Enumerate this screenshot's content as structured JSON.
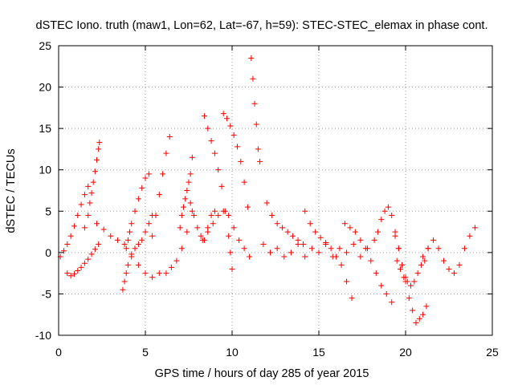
{
  "chart_data": {
    "type": "scatter",
    "title": "dSTEC Iono. truth (maw1, Lon=62, Lat=-67, h=59): STEC-STEC_elemax in phase cont.",
    "xlabel": "GPS time / hours of day 285 of year 2015",
    "ylabel": "dSTEC  / TECUs",
    "xlim": [
      0,
      25
    ],
    "ylim": [
      -10,
      25
    ],
    "xticks": [
      0,
      5,
      10,
      15,
      20,
      25
    ],
    "yticks": [
      -10,
      -5,
      0,
      5,
      10,
      15,
      20,
      25
    ],
    "x_tick_labels": [
      "0",
      "5",
      "10",
      "15",
      "20",
      "25"
    ],
    "y_tick_labels": [
      "-10",
      "-5",
      "0",
      "5",
      "10",
      "15",
      "20",
      "25"
    ],
    "grid": true,
    "marker": "plus",
    "color": "#ff0000",
    "series": [
      {
        "x": [
          0.1,
          0.3,
          0.5,
          0.7,
          0.9,
          1.1,
          1.3,
          1.5,
          1.7
        ],
        "y": [
          -0.5,
          0.2,
          1.0,
          2.0,
          3.2,
          4.5,
          5.8,
          7.0,
          8.0
        ]
      },
      {
        "x": [
          1.5,
          1.7,
          1.8,
          1.9,
          2.0,
          2.1,
          2.2,
          2.3,
          2.35
        ],
        "y": [
          3.0,
          4.5,
          6.0,
          7.2,
          8.5,
          9.8,
          11.2,
          12.5,
          13.3
        ]
      },
      {
        "x": [
          0.5,
          0.7,
          0.9,
          1.1,
          1.3,
          1.5,
          1.7,
          1.9,
          2.1,
          2.3
        ],
        "y": [
          -2.5,
          -2.8,
          -2.6,
          -2.2,
          -1.8,
          -1.3,
          -0.8,
          -0.2,
          0.4,
          1.0
        ]
      },
      {
        "x": [
          3.9,
          4.0,
          4.1,
          4.2,
          4.4,
          4.6,
          4.8,
          5.0,
          5.2
        ],
        "y": [
          0.5,
          1.5,
          2.5,
          3.5,
          5.0,
          6.5,
          7.8,
          9.0,
          9.5
        ]
      },
      {
        "x": [
          3.7,
          3.8,
          3.9,
          4.0,
          4.2,
          4.4,
          4.6,
          4.8,
          5.0,
          5.2,
          5.4
        ],
        "y": [
          -4.5,
          -3.5,
          -2.5,
          -1.5,
          -0.2,
          0.5,
          1.0,
          1.5,
          2.5,
          3.5,
          4.5
        ]
      },
      {
        "x": [
          5.4,
          5.6,
          5.8,
          6.0,
          6.2,
          6.4
        ],
        "y": [
          2.0,
          4.5,
          7.0,
          9.5,
          12.0,
          14.0
        ]
      },
      {
        "x": [
          2.2,
          2.6,
          3.0,
          3.4,
          3.8,
          4.2,
          4.6,
          5.0,
          5.4,
          5.8
        ],
        "y": [
          3.5,
          2.8,
          2.0,
          1.5,
          1.0,
          -0.5,
          -1.5,
          -2.5,
          -3.0,
          -2.5
        ]
      },
      {
        "x": [
          6.2,
          6.5,
          6.8,
          7.1,
          7.4,
          7.7
        ],
        "y": [
          -2.5,
          -1.8,
          -1.0,
          0.5,
          2.5,
          5.0
        ]
      },
      {
        "x": [
          7.0,
          7.1,
          7.2,
          7.3,
          7.4,
          7.5,
          7.6,
          7.7
        ],
        "y": [
          3.0,
          4.5,
          5.5,
          6.5,
          7.5,
          8.5,
          9.5,
          11.5
        ]
      },
      {
        "x": [
          7.6,
          7.8,
          8.0,
          8.2,
          8.4,
          8.6,
          8.8,
          9.0
        ],
        "y": [
          6.0,
          4.5,
          3.0,
          2.0,
          1.5,
          3.0,
          4.5,
          5.0
        ]
      },
      {
        "x": [
          8.4,
          8.6,
          8.8,
          9.0,
          9.2,
          9.4,
          9.6,
          9.8,
          9.9,
          10.0
        ],
        "y": [
          16.5,
          15.0,
          13.5,
          12.0,
          10.0,
          8.0,
          5.0,
          2.0,
          0.0,
          -2.0
        ]
      },
      {
        "x": [
          9.5,
          9.7,
          9.9,
          10.1,
          10.3,
          10.5,
          10.7,
          10.9
        ],
        "y": [
          16.8,
          16.2,
          15.3,
          14.2,
          12.8,
          11.0,
          8.5,
          5.5
        ]
      },
      {
        "x": [
          8.3,
          8.6,
          8.9,
          9.2,
          9.5,
          9.8,
          10.1,
          10.4,
          10.7,
          11.0
        ],
        "y": [
          1.5,
          2.5,
          3.5,
          4.5,
          5.0,
          4.5,
          3.0,
          1.5,
          0.5,
          -0.5
        ]
      },
      {
        "x": [
          11.1,
          11.2,
          11.3,
          11.4,
          11.5,
          11.6
        ],
        "y": [
          23.5,
          21.0,
          18.0,
          15.5,
          12.5,
          11.0
        ]
      },
      {
        "x": [
          11.8,
          12.2,
          12.6,
          13.0,
          13.4,
          13.8,
          14.2,
          14.6,
          15.0,
          15.4,
          15.8,
          16.2,
          16.6,
          17.0,
          17.4,
          17.8
        ],
        "y": [
          1.0,
          0.0,
          0.5,
          -0.5,
          0.0,
          1.0,
          -0.5,
          0.5,
          0.0,
          1.0,
          -0.5,
          0.5,
          0.0,
          1.0,
          -0.5,
          0.5
        ]
      },
      {
        "x": [
          12.0,
          12.3,
          12.6,
          12.9,
          13.2,
          13.5,
          13.8,
          14.1
        ],
        "y": [
          6.0,
          4.5,
          3.5,
          3.0,
          2.5,
          2.0,
          1.5,
          1.0
        ]
      },
      {
        "x": [
          14.2,
          14.5,
          14.8,
          15.1,
          15.4,
          15.7,
          16.0,
          16.3,
          16.6,
          16.9
        ],
        "y": [
          5.0,
          3.5,
          2.5,
          1.8,
          1.2,
          0.5,
          -0.5,
          -1.5,
          -3.5,
          -5.5
        ]
      },
      {
        "x": [
          16.5,
          16.8,
          17.1,
          17.4,
          17.7,
          18.0,
          18.3,
          18.6,
          18.9,
          19.2
        ],
        "y": [
          3.5,
          3.0,
          2.5,
          1.5,
          0.5,
          -1.0,
          -2.5,
          -4.0,
          -5.0,
          -6.0
        ]
      },
      {
        "x": [
          18.2,
          18.4,
          18.6,
          18.8,
          19.0,
          19.2,
          19.4,
          19.6,
          19.8,
          20.0
        ],
        "y": [
          1.5,
          2.5,
          4.0,
          5.0,
          5.5,
          4.5,
          2.5,
          0.5,
          -1.5,
          -3.0
        ]
      },
      {
        "x": [
          19.4,
          19.6,
          19.8,
          20.0,
          20.2,
          20.4,
          20.6,
          20.8,
          21.0,
          21.2
        ],
        "y": [
          2.0,
          0.5,
          -1.5,
          -3.5,
          -5.5,
          -7.0,
          -8.5,
          -8.0,
          -7.5,
          -6.5
        ]
      },
      {
        "x": [
          19.5,
          19.7,
          19.9,
          20.1,
          20.3,
          20.5,
          20.7,
          20.9,
          21.1,
          21.3
        ],
        "y": [
          -1.0,
          -2.0,
          -3.0,
          -3.5,
          -4.0,
          -3.5,
          -2.5,
          -1.5,
          -1.0,
          0.5
        ]
      },
      {
        "x": [
          21.0,
          21.3,
          21.6,
          21.9,
          22.2,
          22.5,
          22.8,
          23.1,
          23.4,
          23.7,
          24.0
        ],
        "y": [
          -0.5,
          0.5,
          1.5,
          0.5,
          -1.0,
          -2.0,
          -2.5,
          -1.5,
          0.5,
          2.0,
          3.0
        ]
      }
    ]
  }
}
